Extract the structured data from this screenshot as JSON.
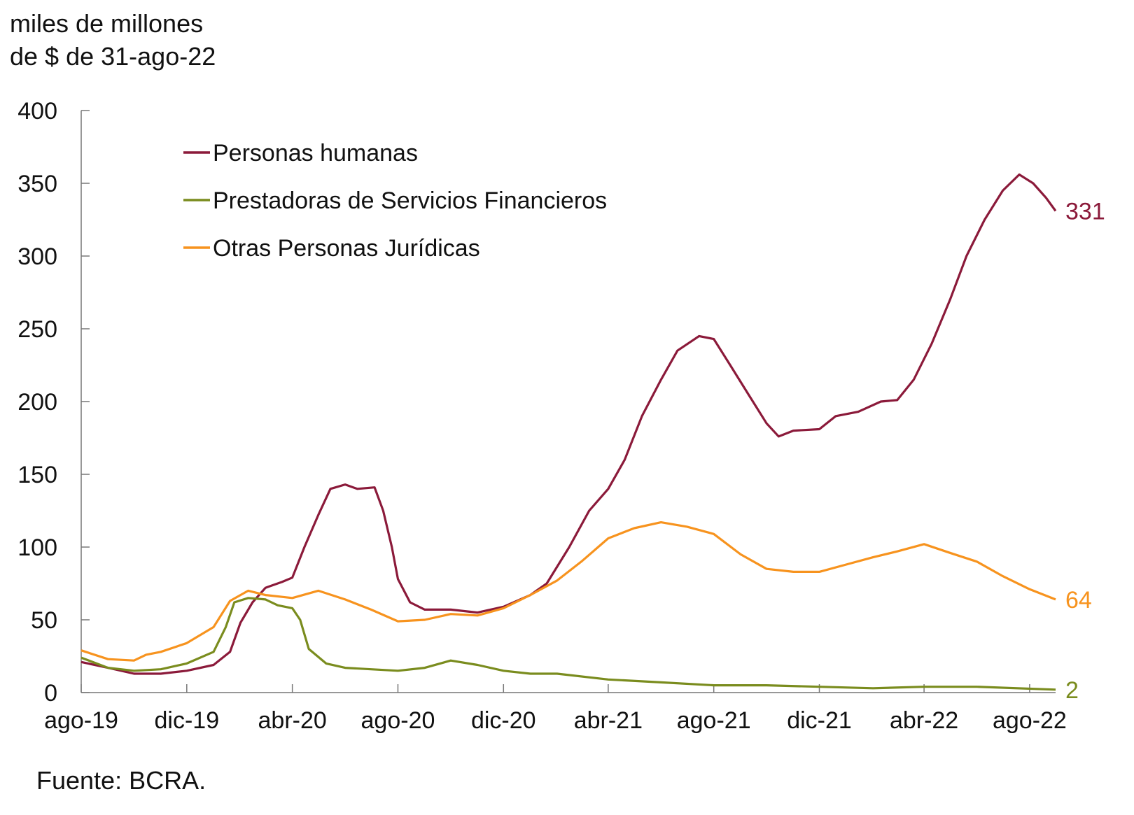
{
  "chart_data": {
    "type": "line",
    "ylabel_line1": "miles de millones",
    "ylabel_line2": "de $ de 31-ago-22",
    "source": "Fuente: BCRA.",
    "ylim": [
      0,
      400
    ],
    "yticks": [
      "0",
      "50",
      "100",
      "150",
      "200",
      "250",
      "300",
      "350",
      "400"
    ],
    "x_range": [
      "2019-08-01",
      "2022-08-31"
    ],
    "xticks": [
      {
        "label": "ago-19",
        "date": "2019-08-01"
      },
      {
        "label": "dic-19",
        "date": "2019-12-01"
      },
      {
        "label": "abr-20",
        "date": "2020-04-01"
      },
      {
        "label": "ago-20",
        "date": "2020-08-01"
      },
      {
        "label": "dic-20",
        "date": "2020-12-01"
      },
      {
        "label": "abr-21",
        "date": "2021-04-01"
      },
      {
        "label": "ago-21",
        "date": "2021-08-01"
      },
      {
        "label": "dic-21",
        "date": "2021-12-01"
      },
      {
        "label": "abr-22",
        "date": "2022-04-01"
      },
      {
        "label": "ago-22",
        "date": "2022-08-01"
      }
    ],
    "grid": false,
    "legend_position": "top-left",
    "series": [
      {
        "name": "Personas humanas",
        "color": "#8b1a3a",
        "end_label": "331",
        "points": [
          [
            "2019-08-01",
            21
          ],
          [
            "2019-09-01",
            17
          ],
          [
            "2019-10-01",
            13
          ],
          [
            "2019-11-01",
            13
          ],
          [
            "2019-12-01",
            15
          ],
          [
            "2020-01-01",
            19
          ],
          [
            "2020-01-20",
            28
          ],
          [
            "2020-02-01",
            48
          ],
          [
            "2020-02-15",
            62
          ],
          [
            "2020-03-01",
            72
          ],
          [
            "2020-03-20",
            76
          ],
          [
            "2020-04-01",
            79
          ],
          [
            "2020-04-15",
            100
          ],
          [
            "2020-05-01",
            122
          ],
          [
            "2020-05-15",
            140
          ],
          [
            "2020-06-01",
            143
          ],
          [
            "2020-06-15",
            140
          ],
          [
            "2020-07-05",
            141
          ],
          [
            "2020-07-15",
            125
          ],
          [
            "2020-07-25",
            100
          ],
          [
            "2020-08-01",
            78
          ],
          [
            "2020-08-15",
            62
          ],
          [
            "2020-09-01",
            57
          ],
          [
            "2020-10-01",
            57
          ],
          [
            "2020-11-01",
            55
          ],
          [
            "2020-12-01",
            59
          ],
          [
            "2021-01-01",
            67
          ],
          [
            "2021-01-20",
            75
          ],
          [
            "2021-02-15",
            100
          ],
          [
            "2021-03-10",
            125
          ],
          [
            "2021-04-01",
            140
          ],
          [
            "2021-04-20",
            160
          ],
          [
            "2021-05-10",
            190
          ],
          [
            "2021-06-01",
            215
          ],
          [
            "2021-06-20",
            235
          ],
          [
            "2021-07-15",
            245
          ],
          [
            "2021-08-01",
            243
          ],
          [
            "2021-08-20",
            225
          ],
          [
            "2021-09-10",
            205
          ],
          [
            "2021-10-01",
            185
          ],
          [
            "2021-10-15",
            176
          ],
          [
            "2021-11-01",
            180
          ],
          [
            "2021-12-01",
            181
          ],
          [
            "2021-12-20",
            190
          ],
          [
            "2022-01-15",
            193
          ],
          [
            "2022-02-10",
            200
          ],
          [
            "2022-03-01",
            201
          ],
          [
            "2022-03-20",
            215
          ],
          [
            "2022-04-10",
            240
          ],
          [
            "2022-05-01",
            270
          ],
          [
            "2022-05-20",
            300
          ],
          [
            "2022-06-10",
            325
          ],
          [
            "2022-07-01",
            345
          ],
          [
            "2022-07-20",
            356
          ],
          [
            "2022-08-05",
            350
          ],
          [
            "2022-08-20",
            340
          ],
          [
            "2022-08-31",
            331
          ]
        ]
      },
      {
        "name": "Prestadoras de Servicios Financieros",
        "color": "#7a8c1e",
        "end_label": "2",
        "points": [
          [
            "2019-08-01",
            24
          ],
          [
            "2019-09-01",
            17
          ],
          [
            "2019-10-01",
            15
          ],
          [
            "2019-11-01",
            16
          ],
          [
            "2019-12-01",
            20
          ],
          [
            "2020-01-01",
            28
          ],
          [
            "2020-01-15",
            45
          ],
          [
            "2020-01-25",
            62
          ],
          [
            "2020-02-10",
            65
          ],
          [
            "2020-03-01",
            64
          ],
          [
            "2020-03-15",
            60
          ],
          [
            "2020-04-01",
            58
          ],
          [
            "2020-04-10",
            50
          ],
          [
            "2020-04-20",
            30
          ],
          [
            "2020-05-10",
            20
          ],
          [
            "2020-06-01",
            17
          ],
          [
            "2020-07-01",
            16
          ],
          [
            "2020-08-01",
            15
          ],
          [
            "2020-09-01",
            17
          ],
          [
            "2020-10-01",
            22
          ],
          [
            "2020-11-01",
            19
          ],
          [
            "2020-12-01",
            15
          ],
          [
            "2021-01-01",
            13
          ],
          [
            "2021-02-01",
            13
          ],
          [
            "2021-04-01",
            9
          ],
          [
            "2021-06-01",
            7
          ],
          [
            "2021-08-01",
            5
          ],
          [
            "2021-10-01",
            5
          ],
          [
            "2021-12-01",
            4
          ],
          [
            "2022-02-01",
            3
          ],
          [
            "2022-04-01",
            4
          ],
          [
            "2022-06-01",
            4
          ],
          [
            "2022-08-31",
            2
          ]
        ]
      },
      {
        "name": "Otras Personas Jurídicas",
        "color": "#f7931e",
        "end_label": "64",
        "points": [
          [
            "2019-08-01",
            29
          ],
          [
            "2019-09-01",
            23
          ],
          [
            "2019-10-01",
            22
          ],
          [
            "2019-10-15",
            26
          ],
          [
            "2019-11-01",
            28
          ],
          [
            "2019-12-01",
            34
          ],
          [
            "2020-01-01",
            45
          ],
          [
            "2020-01-20",
            63
          ],
          [
            "2020-02-10",
            70
          ],
          [
            "2020-03-01",
            67
          ],
          [
            "2020-04-01",
            65
          ],
          [
            "2020-05-01",
            70
          ],
          [
            "2020-06-01",
            64
          ],
          [
            "2020-07-01",
            57
          ],
          [
            "2020-08-01",
            49
          ],
          [
            "2020-09-01",
            50
          ],
          [
            "2020-10-01",
            54
          ],
          [
            "2020-11-01",
            53
          ],
          [
            "2020-12-01",
            58
          ],
          [
            "2021-01-01",
            67
          ],
          [
            "2021-02-01",
            77
          ],
          [
            "2021-03-01",
            90
          ],
          [
            "2021-04-01",
            106
          ],
          [
            "2021-05-01",
            113
          ],
          [
            "2021-06-01",
            117
          ],
          [
            "2021-07-01",
            114
          ],
          [
            "2021-08-01",
            109
          ],
          [
            "2021-09-01",
            95
          ],
          [
            "2021-10-01",
            85
          ],
          [
            "2021-11-01",
            83
          ],
          [
            "2021-12-01",
            83
          ],
          [
            "2022-01-01",
            88
          ],
          [
            "2022-02-01",
            93
          ],
          [
            "2022-03-01",
            97
          ],
          [
            "2022-04-01",
            102
          ],
          [
            "2022-05-01",
            96
          ],
          [
            "2022-06-01",
            90
          ],
          [
            "2022-07-01",
            80
          ],
          [
            "2022-08-01",
            71
          ],
          [
            "2022-08-31",
            64
          ]
        ]
      }
    ]
  }
}
